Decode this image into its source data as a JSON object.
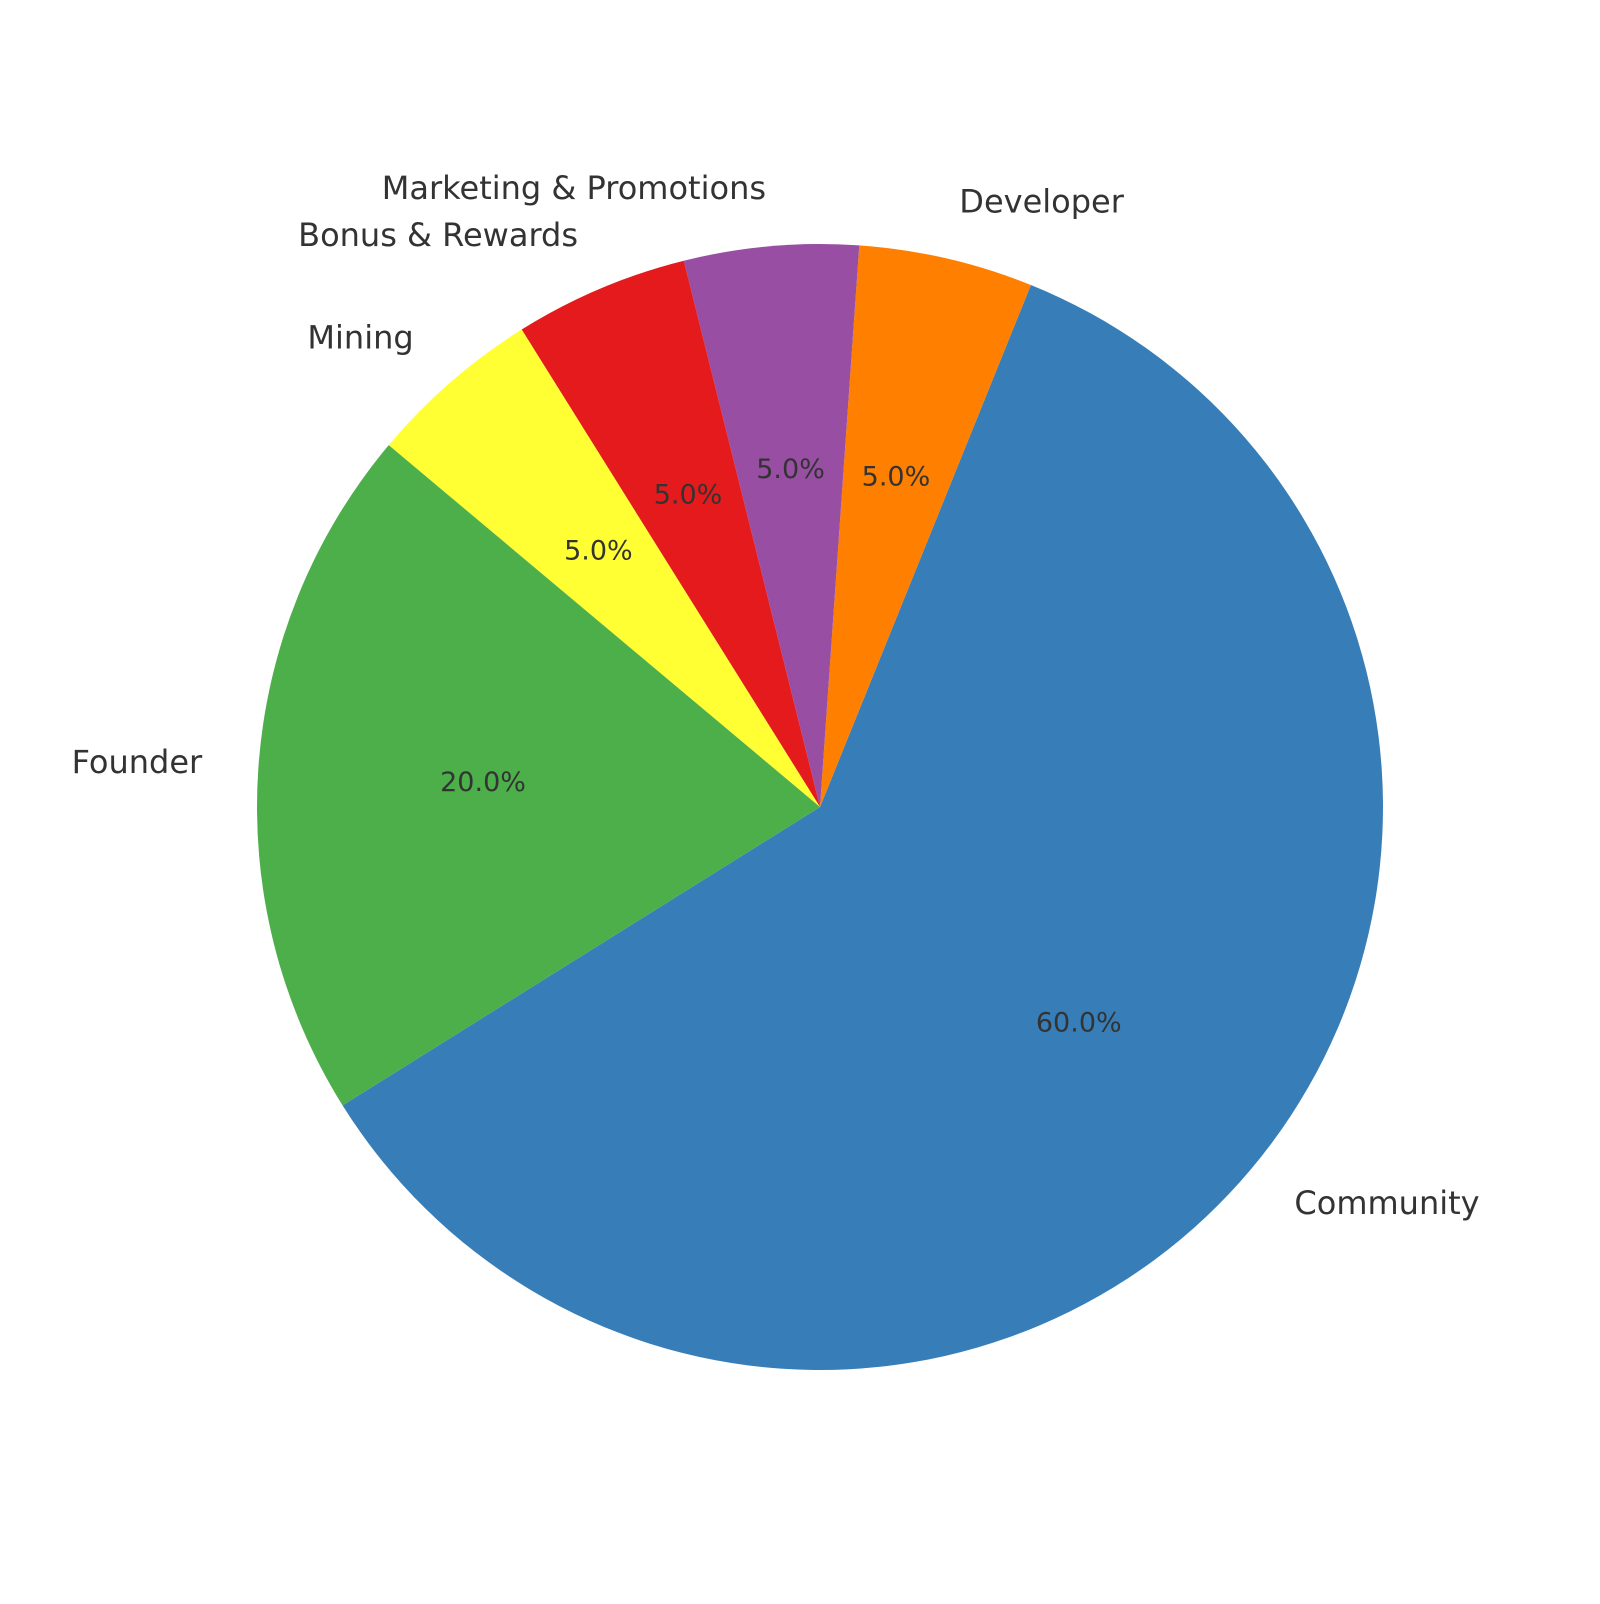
{
  "chart_data": {
    "type": "pie",
    "categories": [
      "Community",
      "Developer",
      "Marketing & Promotions",
      "Bonus & Rewards",
      "Mining",
      "Founder"
    ],
    "values": [
      60,
      5,
      5,
      5,
      5,
      20
    ],
    "value_labels": [
      "60.0%",
      "5.0%",
      "5.0%",
      "5.0%",
      "5.0%",
      "20.0%"
    ],
    "colors": [
      "#377eb8",
      "#ff7f00",
      "#984ea3",
      "#e41a1c",
      "#ffff33",
      "#4daf4a"
    ]
  }
}
